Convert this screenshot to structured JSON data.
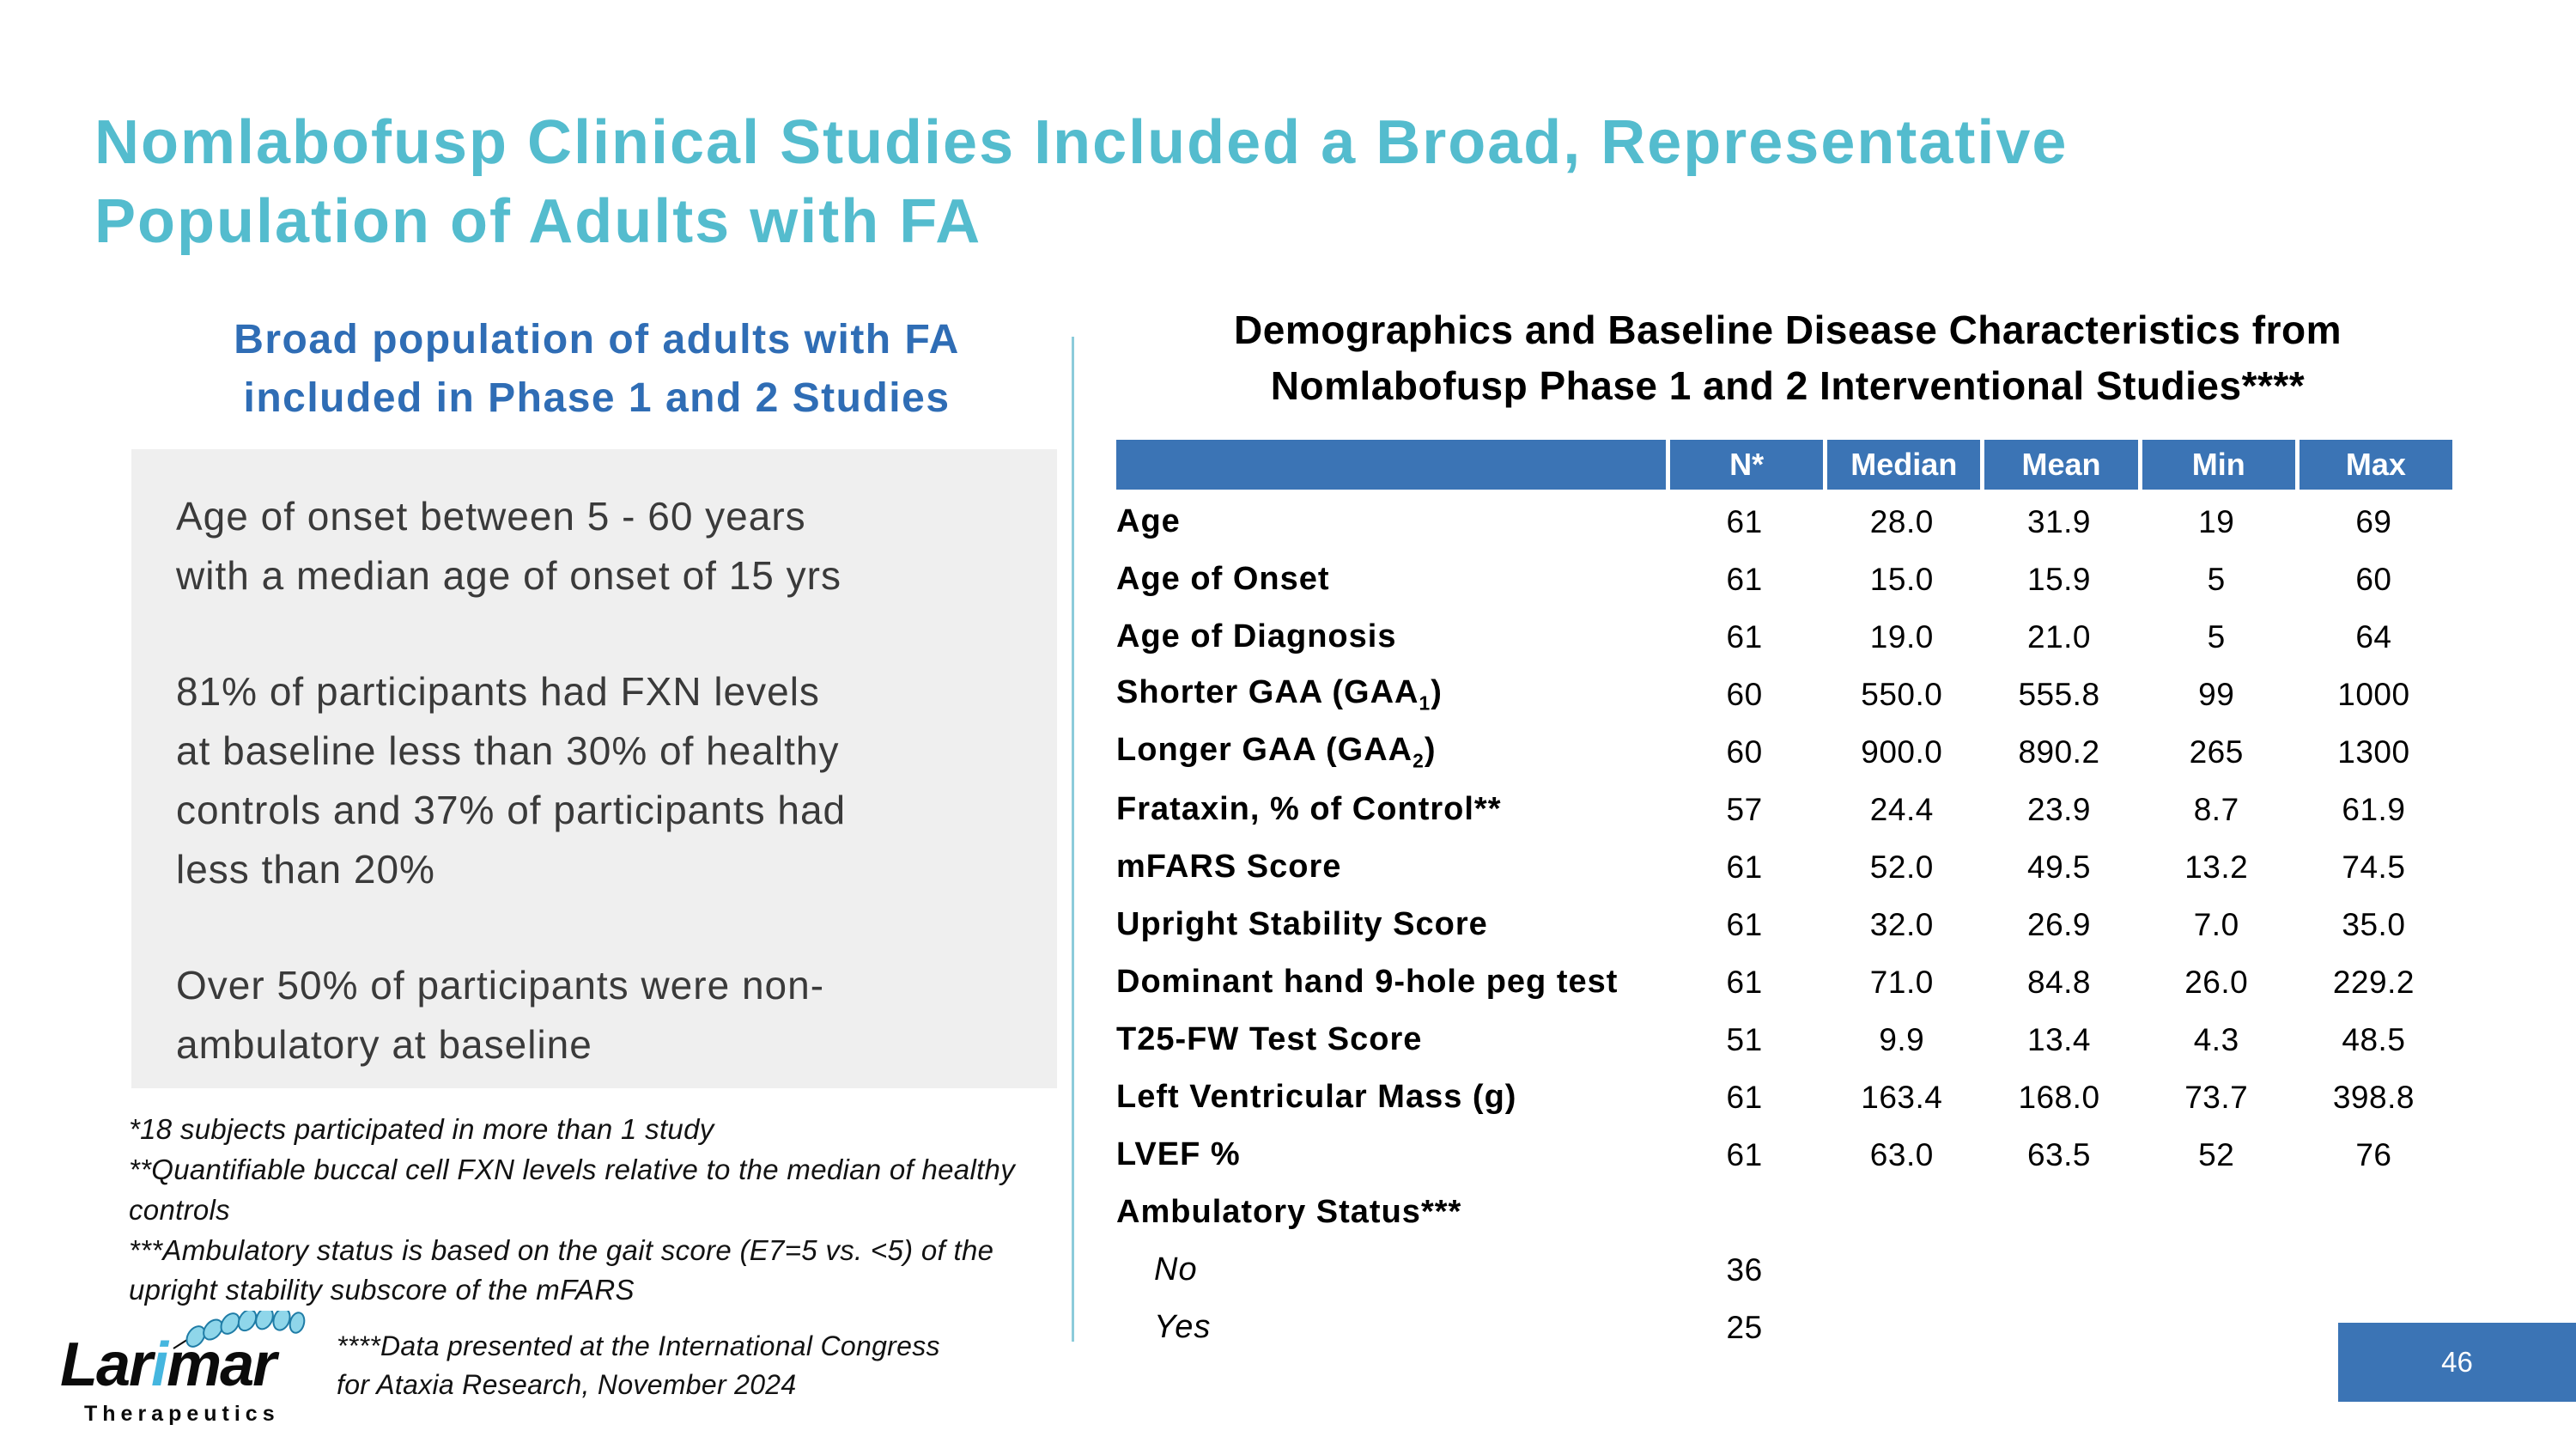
{
  "colors": {
    "title_teal": "#54BCCE",
    "subtitle_blue": "#2F6DB5",
    "table_header_blue": "#3B74B5",
    "page_box_blue": "#3B74B5",
    "highlight_box_gray": "#EFEFEF",
    "divider_teal": "#8CCBDA",
    "logo_accent_blue": "#45B6DF"
  },
  "title": {
    "lines": [
      "Nomlabofusp Clinical Studies Included a Broad, Representative",
      "Population of Adults with FA"
    ]
  },
  "left_panel": {
    "subtitle_lines": [
      "Broad population of adults with FA",
      "included in Phase 1 and 2 Studies"
    ],
    "highlight_paragraphs": [
      [
        "Age of onset between 5 - 60 years",
        "with a median age of onset of 15 yrs"
      ],
      [
        "81% of participants had FXN levels",
        "at baseline less than 30% of healthy",
        "controls and 37% of participants had",
        "less than 20%"
      ],
      [
        "Over 50% of participants were non-",
        "ambulatory at baseline"
      ]
    ],
    "footnotes": [
      "*18 subjects participated in more than 1 study",
      "**Quantifiable buccal cell FXN levels relative to the median of healthy controls",
      "***Ambulatory status is based on the gait score (E7=5 vs. <5) of the upright stability subscore of the mFARS"
    ],
    "congress_note_lines": [
      "****Data presented at the International Congress",
      "for Ataxia Research, November 2024"
    ]
  },
  "logo": {
    "brand_prefix": "Lar",
    "brand_i": "i",
    "brand_suffix": "mar",
    "subtext": "Therapeutics"
  },
  "right_panel": {
    "table_title_lines": [
      "Demographics and Baseline Disease Characteristics from",
      "Nomlabofusp Phase 1 and 2 Interventional Studies****"
    ],
    "table": {
      "columns": [
        "",
        "N*",
        "Median",
        "Mean",
        "Min",
        "Max"
      ],
      "rows": [
        {
          "label": "Age",
          "values": [
            "61",
            "28.0",
            "31.9",
            "19",
            "69"
          ],
          "style": "main"
        },
        {
          "label": "Age of Onset",
          "values": [
            "61",
            "15.0",
            "15.9",
            "5",
            "60"
          ],
          "style": "main"
        },
        {
          "label": "Age of Diagnosis",
          "values": [
            "61",
            "19.0",
            "21.0",
            "5",
            "64"
          ],
          "style": "main"
        },
        {
          "label": "Shorter GAA (GAA₁)",
          "values": [
            "60",
            "550.0",
            "555.8",
            "99",
            "1000"
          ],
          "style": "main"
        },
        {
          "label": "Longer GAA (GAA₂)",
          "values": [
            "60",
            "900.0",
            "890.2",
            "265",
            "1300"
          ],
          "style": "main"
        },
        {
          "label": "Frataxin, % of Control**",
          "values": [
            "57",
            "24.4",
            "23.9",
            "8.7",
            "61.9"
          ],
          "style": "main"
        },
        {
          "label": "mFARS Score",
          "values": [
            "61",
            "52.0",
            "49.5",
            "13.2",
            "74.5"
          ],
          "style": "main"
        },
        {
          "label": "Upright Stability Score",
          "values": [
            "61",
            "32.0",
            "26.9",
            "7.0",
            "35.0"
          ],
          "style": "main"
        },
        {
          "label": "Dominant hand 9-hole peg test",
          "values": [
            "61",
            "71.0",
            "84.8",
            "26.0",
            "229.2"
          ],
          "style": "main"
        },
        {
          "label": "T25-FW Test Score",
          "values": [
            "51",
            "9.9",
            "13.4",
            "4.3",
            "48.5"
          ],
          "style": "main"
        },
        {
          "label": "Left Ventricular Mass (g)",
          "values": [
            "61",
            "163.4",
            "168.0",
            "73.7",
            "398.8"
          ],
          "style": "main"
        },
        {
          "label": "LVEF %",
          "values": [
            "61",
            "63.0",
            "63.5",
            "52",
            "76"
          ],
          "style": "main"
        },
        {
          "label": "Ambulatory Status***",
          "values": [
            "",
            "",
            "",
            "",
            ""
          ],
          "style": "main"
        },
        {
          "label": "No",
          "values": [
            "36",
            "",
            "",
            "",
            ""
          ],
          "style": "sub"
        },
        {
          "label": "Yes",
          "values": [
            "25",
            "",
            "",
            "",
            ""
          ],
          "style": "sub"
        }
      ]
    }
  },
  "footer": {
    "page_number": "46"
  }
}
